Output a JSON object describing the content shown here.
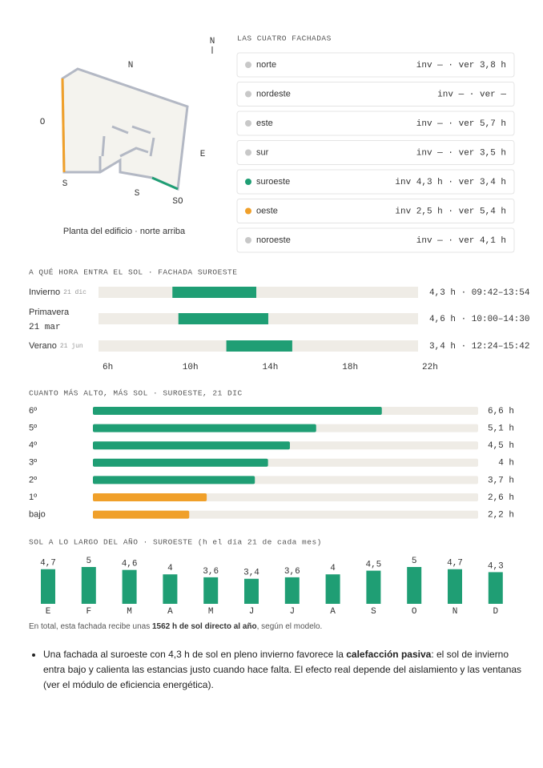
{
  "plan": {
    "compass": "N",
    "labels": [
      "N",
      "O",
      "E",
      "S",
      "S",
      "SO"
    ],
    "caption": "Planta del edificio · norte arriba"
  },
  "facades": {
    "title": "LAS CUATRO FACHADAS",
    "rows": [
      {
        "name": "norte",
        "hours": "inv — · ver 3,8 h",
        "color": "#c8c8c8"
      },
      {
        "name": "nordeste",
        "hours": "inv — · ver —",
        "color": "#c8c8c8"
      },
      {
        "name": "este",
        "hours": "inv — · ver 5,7 h",
        "color": "#c8c8c8"
      },
      {
        "name": "sur",
        "hours": "inv — · ver 3,5 h",
        "color": "#c8c8c8"
      },
      {
        "name": "suroeste",
        "hours": "inv 4,3 h · ver 3,4 h",
        "color": "#1f9e74"
      },
      {
        "name": "oeste",
        "hours": "inv 2,5 h · ver 5,4 h",
        "color": "#f0a02a"
      },
      {
        "name": "noroeste",
        "hours": "inv — · ver 4,1 h",
        "color": "#c8c8c8"
      }
    ]
  },
  "chart_data": [
    {
      "type": "range",
      "title": "A QUÉ HORA ENTRA EL SOL · FACHADA SUROESTE",
      "categories": [
        "Invierno",
        "Primavera",
        "Verano"
      ],
      "subcategories": [
        "21 dic",
        "21 mar",
        "21 jun"
      ],
      "starts": [
        9.7,
        10.0,
        12.4
      ],
      "ends": [
        13.9,
        14.5,
        15.7
      ],
      "value_labels": [
        "4,3 h · 09:42–13:54",
        "4,6 h · 10:00–14:30",
        "3,4 h · 12:24–15:42"
      ],
      "color": "#1f9e74",
      "xlim": [
        6,
        22
      ],
      "xticks": [
        {
          "value": 6,
          "label": "6h"
        },
        {
          "value": 10,
          "label": "10h"
        },
        {
          "value": 14,
          "label": "14h"
        },
        {
          "value": 18,
          "label": "18h"
        },
        {
          "value": 22,
          "label": "22h"
        }
      ]
    },
    {
      "type": "hbar",
      "title": "CUANTO MÁS ALTO, MÁS SOL · SUROESTE, 21 DIC",
      "categories": [
        "6º",
        "5º",
        "4º",
        "3º",
        "2º",
        "1º",
        "bajo"
      ],
      "values": [
        6.6,
        5.1,
        4.5,
        4,
        3.7,
        2.6,
        2.2
      ],
      "value_labels": [
        "6,6 h",
        "5,1 h",
        "4,5 h",
        "4 h",
        "3,7 h",
        "2,6 h",
        "2,2 h"
      ],
      "colors": [
        "#1f9e74",
        "#1f9e74",
        "#1f9e74",
        "#1f9e74",
        "#1f9e74",
        "#f0a02a",
        "#f0a02a"
      ],
      "xlim": [
        0,
        8.8
      ]
    },
    {
      "type": "column",
      "title": "SOL A LO LARGO DEL AÑO · SUROESTE (h el día 21 de cada mes)",
      "categories": [
        "E",
        "F",
        "M",
        "A",
        "M",
        "J",
        "J",
        "A",
        "S",
        "O",
        "N",
        "D"
      ],
      "values": [
        4.7,
        5,
        4.6,
        4,
        3.6,
        3.4,
        3.6,
        4,
        4.5,
        5,
        4.7,
        4.3
      ],
      "value_labels": [
        "4,7",
        "5",
        "4,6",
        "4",
        "3,6",
        "3,4",
        "3,6",
        "4",
        "4,5",
        "5",
        "4,7",
        "4,3"
      ],
      "color": "#1f9e74",
      "ylim": [
        0,
        5
      ]
    }
  ],
  "summary": {
    "parts": [
      "En total, esta fachada recibe unas ",
      "1562 h de sol directo al año",
      ", según el modelo."
    ]
  },
  "note": {
    "parts": [
      "Una fachada al suroeste con 4,3 h de sol en pleno invierno favorece la ",
      "calefacción pasiva",
      ": el sol de invierno entra bajo y calienta las estancias justo cuando hace falta. El efecto real depende del aislamiento y las ventanas (ver el módulo de eficiencia energética)."
    ]
  }
}
